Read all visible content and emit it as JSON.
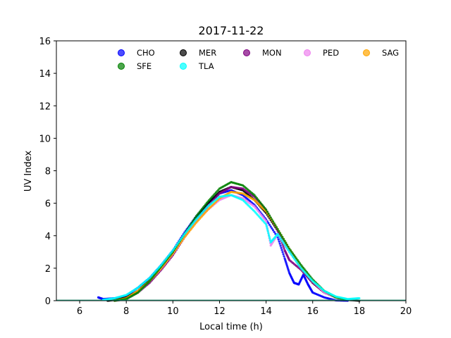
{
  "chart_data": {
    "type": "scatter",
    "title": "2017-11-22",
    "xlabel": "Local time (h)",
    "ylabel": "UV Index",
    "xlim": [
      5,
      20
    ],
    "ylim": [
      0,
      16
    ],
    "xticks": [
      6,
      8,
      10,
      12,
      14,
      16,
      18,
      20
    ],
    "yticks": [
      0,
      2,
      4,
      6,
      8,
      10,
      12,
      14,
      16
    ],
    "grid": false,
    "legend_position": "top",
    "series": [
      {
        "name": "CHO",
        "color": "#0000ff",
        "points": [
          [
            6.8,
            0.2
          ],
          [
            7.0,
            0.1
          ],
          [
            7.5,
            0.15
          ],
          [
            8.0,
            0.3
          ],
          [
            8.5,
            0.8
          ],
          [
            9.0,
            1.4
          ],
          [
            9.5,
            2.2
          ],
          [
            10.0,
            3.1
          ],
          [
            10.5,
            4.2
          ],
          [
            11.0,
            5.2
          ],
          [
            11.5,
            6.0
          ],
          [
            12.0,
            6.6
          ],
          [
            12.5,
            6.8
          ],
          [
            13.0,
            6.5
          ],
          [
            13.5,
            5.9
          ],
          [
            14.0,
            5.0
          ],
          [
            14.5,
            3.9
          ],
          [
            14.8,
            2.6
          ],
          [
            15.0,
            1.7
          ],
          [
            15.2,
            1.1
          ],
          [
            15.4,
            1.0
          ],
          [
            15.6,
            1.6
          ],
          [
            15.8,
            1.0
          ],
          [
            16.0,
            0.5
          ],
          [
            16.5,
            0.2
          ],
          [
            17.0,
            0.02
          ],
          [
            17.5,
            0.0
          ]
        ]
      },
      {
        "name": "MER",
        "color": "#000000",
        "points": [
          [
            7.2,
            0.0
          ],
          [
            7.5,
            0.05
          ],
          [
            8.0,
            0.2
          ],
          [
            8.5,
            0.6
          ],
          [
            9.0,
            1.3
          ],
          [
            9.5,
            2.1
          ],
          [
            10.0,
            3.0
          ],
          [
            10.5,
            4.1
          ],
          [
            11.0,
            5.1
          ],
          [
            11.5,
            6.0
          ],
          [
            12.0,
            6.7
          ],
          [
            12.5,
            7.0
          ],
          [
            13.0,
            6.8
          ],
          [
            13.5,
            6.2
          ],
          [
            14.0,
            5.4
          ],
          [
            14.5,
            4.3
          ],
          [
            15.0,
            3.1
          ],
          [
            15.5,
            2.0
          ],
          [
            16.0,
            1.1
          ],
          [
            16.5,
            0.5
          ],
          [
            17.0,
            0.2
          ],
          [
            17.5,
            0.05
          ],
          [
            18.0,
            0.0
          ]
        ]
      },
      {
        "name": "MON",
        "color": "#800080",
        "points": [
          [
            7.5,
            0.0
          ],
          [
            8.0,
            0.1
          ],
          [
            8.5,
            0.5
          ],
          [
            9.0,
            1.1
          ],
          [
            9.5,
            1.9
          ],
          [
            10.0,
            2.8
          ],
          [
            10.5,
            3.9
          ],
          [
            11.0,
            4.9
          ],
          [
            11.5,
            5.8
          ],
          [
            12.0,
            6.6
          ],
          [
            12.5,
            7.0
          ],
          [
            13.0,
            6.9
          ],
          [
            13.5,
            6.4
          ],
          [
            14.0,
            5.6
          ],
          [
            14.5,
            4.3
          ],
          [
            14.8,
            3.1
          ],
          [
            15.0,
            2.5
          ],
          [
            15.5,
            1.9
          ],
          [
            16.0,
            1.1
          ],
          [
            16.5,
            0.5
          ],
          [
            17.0,
            0.2
          ],
          [
            17.5,
            0.05
          ]
        ]
      },
      {
        "name": "PED",
        "color": "#ee82ee",
        "points": [
          [
            7.5,
            0.0
          ],
          [
            8.0,
            0.1
          ],
          [
            8.5,
            0.5
          ],
          [
            9.0,
            1.2
          ],
          [
            9.5,
            2.0
          ],
          [
            10.0,
            2.9
          ],
          [
            10.5,
            3.9
          ],
          [
            11.0,
            4.9
          ],
          [
            11.5,
            5.6
          ],
          [
            12.0,
            6.2
          ],
          [
            12.5,
            6.5
          ],
          [
            13.0,
            6.3
          ],
          [
            13.5,
            5.8
          ],
          [
            14.0,
            4.9
          ],
          [
            14.2,
            3.4
          ],
          [
            14.5,
            4.1
          ],
          [
            15.0,
            3.0
          ],
          [
            15.5,
            2.1
          ],
          [
            16.0,
            1.2
          ],
          [
            16.5,
            0.5
          ],
          [
            17.0,
            0.2
          ],
          [
            17.5,
            0.05
          ]
        ]
      },
      {
        "name": "SAG",
        "color": "#ffa500",
        "points": [
          [
            7.5,
            0.0
          ],
          [
            8.0,
            0.15
          ],
          [
            8.5,
            0.6
          ],
          [
            9.0,
            1.2
          ],
          [
            9.5,
            2.0
          ],
          [
            10.0,
            2.9
          ],
          [
            10.5,
            3.9
          ],
          [
            11.0,
            4.8
          ],
          [
            11.5,
            5.6
          ],
          [
            12.0,
            6.3
          ],
          [
            12.5,
            6.7
          ],
          [
            13.0,
            6.6
          ],
          [
            13.5,
            6.2
          ],
          [
            14.0,
            5.5
          ],
          [
            14.5,
            4.4
          ],
          [
            15.0,
            3.2
          ],
          [
            15.5,
            2.1
          ],
          [
            16.0,
            1.2
          ],
          [
            16.5,
            0.6
          ],
          [
            17.0,
            0.2
          ],
          [
            17.5,
            0.05
          ]
        ]
      },
      {
        "name": "SFE",
        "color": "#008000",
        "points": [
          [
            7.5,
            0.0
          ],
          [
            8.0,
            0.1
          ],
          [
            8.5,
            0.5
          ],
          [
            9.0,
            1.2
          ],
          [
            9.5,
            2.1
          ],
          [
            10.0,
            3.0
          ],
          [
            10.5,
            4.1
          ],
          [
            11.0,
            5.2
          ],
          [
            11.5,
            6.1
          ],
          [
            12.0,
            6.9
          ],
          [
            12.5,
            7.3
          ],
          [
            13.0,
            7.1
          ],
          [
            13.5,
            6.5
          ],
          [
            14.0,
            5.6
          ],
          [
            14.5,
            4.4
          ],
          [
            15.0,
            3.2
          ],
          [
            15.5,
            2.2
          ],
          [
            16.0,
            1.3
          ],
          [
            16.5,
            0.6
          ],
          [
            17.0,
            0.2
          ],
          [
            17.5,
            0.05
          ]
        ]
      },
      {
        "name": "TLA",
        "color": "#00ffff",
        "points": [
          [
            7.0,
            0.05
          ],
          [
            7.5,
            0.15
          ],
          [
            8.0,
            0.35
          ],
          [
            8.5,
            0.8
          ],
          [
            9.0,
            1.4
          ],
          [
            9.5,
            2.2
          ],
          [
            10.0,
            3.1
          ],
          [
            10.5,
            4.1
          ],
          [
            11.0,
            5.0
          ],
          [
            11.5,
            5.8
          ],
          [
            12.0,
            6.4
          ],
          [
            12.5,
            6.5
          ],
          [
            13.0,
            6.2
          ],
          [
            13.5,
            5.5
          ],
          [
            14.0,
            4.7
          ],
          [
            14.2,
            3.6
          ],
          [
            14.5,
            4.1
          ],
          [
            15.0,
            3.0
          ],
          [
            15.5,
            2.0
          ],
          [
            16.0,
            1.2
          ],
          [
            16.5,
            0.6
          ],
          [
            17.0,
            0.25
          ],
          [
            17.5,
            0.1
          ],
          [
            18.0,
            0.15
          ]
        ]
      }
    ]
  }
}
